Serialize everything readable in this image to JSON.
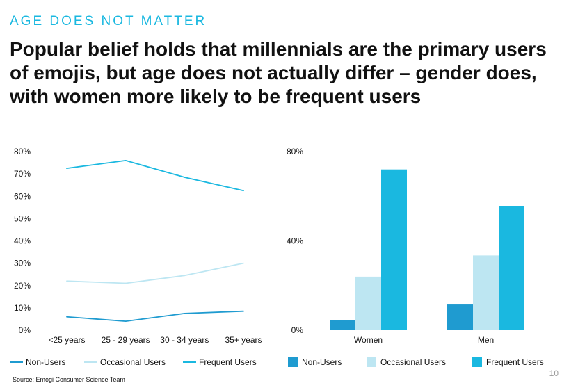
{
  "header": {
    "kicker": "AGE DOES NOT MATTER",
    "headline": "Popular belief holds that millennials are the primary users of emojis, but age does not actually differ – gender does, with women more likely to be frequent users"
  },
  "footer": {
    "source": "Source: Emogi Consumer Science Team",
    "page_number": "10"
  },
  "chart_data": [
    {
      "type": "line",
      "title": "",
      "categories": [
        "<25 years",
        "25 - 29 years",
        "30 - 34 years",
        "35+ years"
      ],
      "ylim": [
        0,
        80
      ],
      "yticks": [
        0,
        10,
        20,
        30,
        40,
        50,
        60,
        70,
        80
      ],
      "ytick_labels": [
        "0%",
        "10%",
        "20%",
        "30%",
        "40%",
        "50%",
        "60%",
        "70%",
        "80%"
      ],
      "grid": false,
      "legend": "bottom",
      "series": [
        {
          "name": "Non-Users",
          "color": "#1f9bd0",
          "values": [
            6,
            4,
            7.5,
            8.5
          ]
        },
        {
          "name": "Occasional Users",
          "color": "#bde6f2",
          "values": [
            22,
            21,
            24.5,
            30
          ]
        },
        {
          "name": "Frequent Users",
          "color": "#1ab8e0",
          "values": [
            72.5,
            76,
            68.5,
            62.5
          ]
        }
      ]
    },
    {
      "type": "bar",
      "title": "",
      "categories": [
        "Women",
        "Men"
      ],
      "ylim": [
        0,
        80
      ],
      "yticks": [
        0,
        40,
        80
      ],
      "ytick_labels": [
        "0%",
        "40%",
        "80%"
      ],
      "grid": false,
      "legend": "bottom",
      "series": [
        {
          "name": "Non-Users",
          "color": "#1f9bd0",
          "values": [
            4.5,
            11.5
          ]
        },
        {
          "name": "Occasional Users",
          "color": "#bde6f2",
          "values": [
            24,
            33.5
          ]
        },
        {
          "name": "Frequent Users",
          "color": "#1ab8e0",
          "values": [
            72,
            55.5
          ]
        }
      ]
    }
  ]
}
